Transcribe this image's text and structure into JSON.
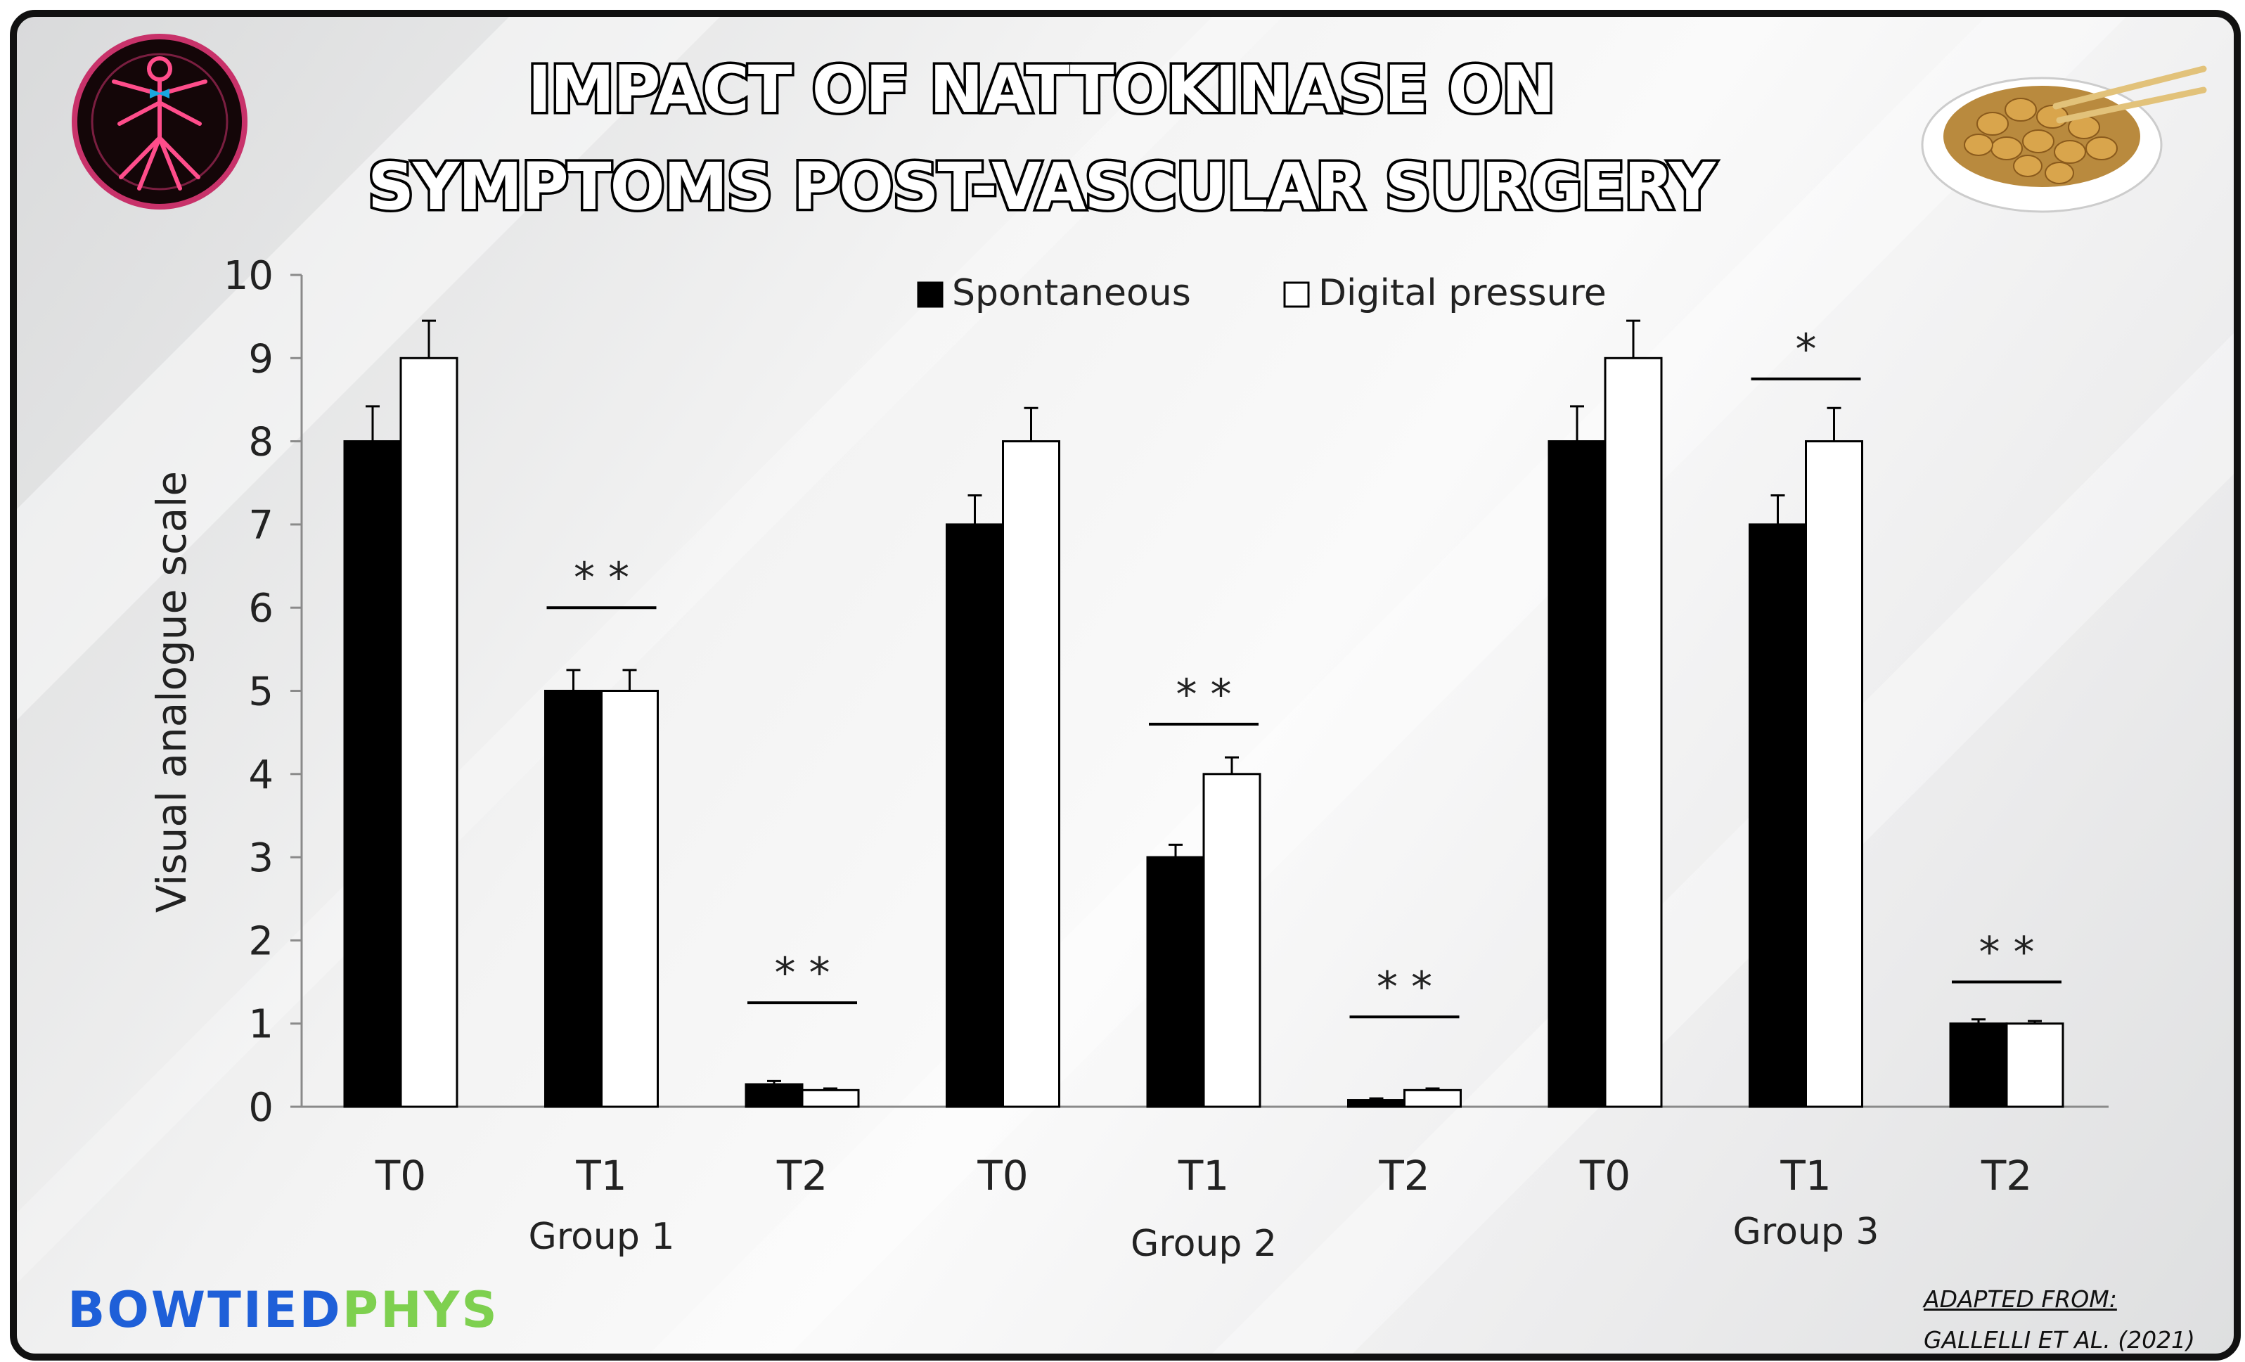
{
  "title_lines": [
    "IMPACT OF NATTOKINASE ON",
    "SYMPTOMS POST-VASCULAR SURGERY"
  ],
  "brand": {
    "part1": "BOWTIED",
    "part2": "PHYS",
    "color1": "#1e5fd8",
    "color2": "#7ed04f"
  },
  "credit": {
    "line1": "ADAPTED FROM:",
    "line2": "GALLELLI ET AL. (2021)"
  },
  "icons": {
    "left": "anatomy-figure-icon",
    "right": "natto-bowl-icon"
  },
  "chart_data": {
    "type": "bar",
    "title": "",
    "ylabel": "Visual analogue scale",
    "xlabel": "",
    "ylim": [
      0,
      10
    ],
    "yticks": [
      0,
      1,
      2,
      3,
      4,
      5,
      6,
      7,
      8,
      9,
      10
    ],
    "grid": false,
    "legend_position": "top-center",
    "categories": [
      "T0",
      "T1",
      "T2",
      "T0",
      "T1",
      "T2",
      "T0",
      "T1",
      "T2"
    ],
    "groups": [
      {
        "label": "Group 1",
        "categories": [
          0,
          1,
          2
        ]
      },
      {
        "label": "Group 2",
        "categories": [
          3,
          4,
          5
        ]
      },
      {
        "label": "Group 3",
        "categories": [
          6,
          7,
          8
        ]
      }
    ],
    "series": [
      {
        "name": "Spontaneous",
        "color": "#000000",
        "values": [
          8,
          5,
          0.27,
          7,
          3,
          0.08,
          8,
          7,
          1
        ],
        "errors": [
          0.42,
          0.25,
          0.04,
          0.35,
          0.15,
          0.02,
          0.42,
          0.35,
          0.05
        ]
      },
      {
        "name": "Digital pressure",
        "color": "#ffffff",
        "values": [
          9,
          5,
          0.2,
          8,
          4,
          0.2,
          9,
          8,
          1
        ],
        "errors": [
          0.45,
          0.25,
          0.02,
          0.4,
          0.2,
          0.02,
          0.45,
          0.4,
          0.03
        ]
      }
    ],
    "annotations": [
      {
        "category": 1,
        "text": "* *",
        "y": 6
      },
      {
        "category": 2,
        "text": "* *",
        "y": 1.25
      },
      {
        "category": 4,
        "text": "* *",
        "y": 4.6
      },
      {
        "category": 5,
        "text": "* *",
        "y": 1.08
      },
      {
        "category": 7,
        "text": "*",
        "y": 8.75
      },
      {
        "category": 8,
        "text": "* *",
        "y": 1.5
      }
    ]
  }
}
